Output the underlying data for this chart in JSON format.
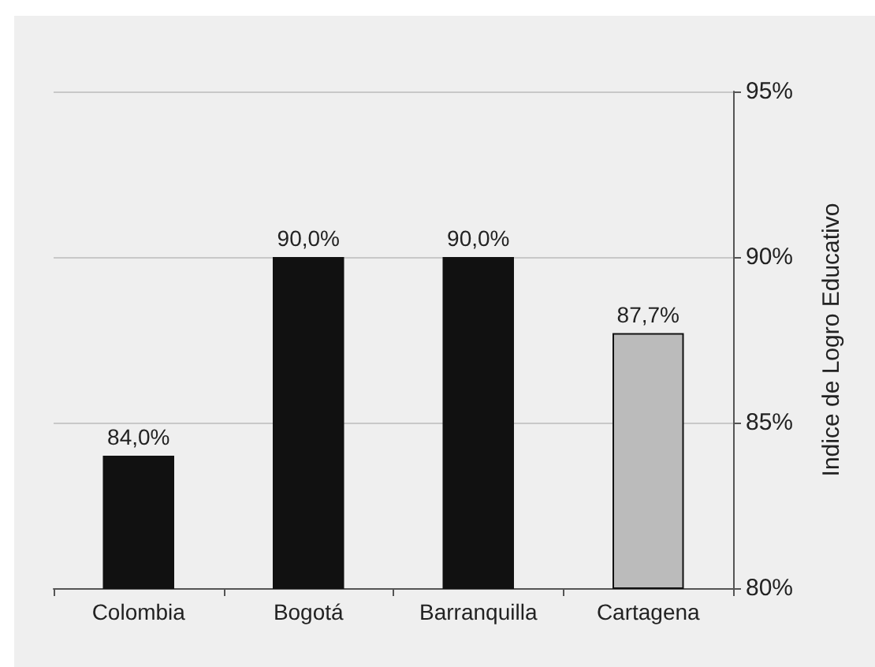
{
  "chart_data": {
    "type": "bar",
    "ylabel": "Indice de Logro Educativo",
    "categories": [
      "Colombia",
      "Bogotá",
      "Barranquilla",
      "Cartagena"
    ],
    "values": [
      84.0,
      90.0,
      90.0,
      87.7
    ],
    "colors": [
      "#111111",
      "#111111",
      "#111111",
      "#bbbbbb"
    ],
    "value_labels": [
      "84,0%",
      "90,0%",
      "90,0%",
      "87,7%"
    ],
    "ylim": [
      80,
      95
    ],
    "yticks": [
      {
        "value": 80,
        "label": "80%"
      },
      {
        "value": 85,
        "label": "85%"
      },
      {
        "value": 90,
        "label": "90%"
      },
      {
        "value": 95,
        "label": "95%"
      }
    ],
    "grid": "y"
  }
}
